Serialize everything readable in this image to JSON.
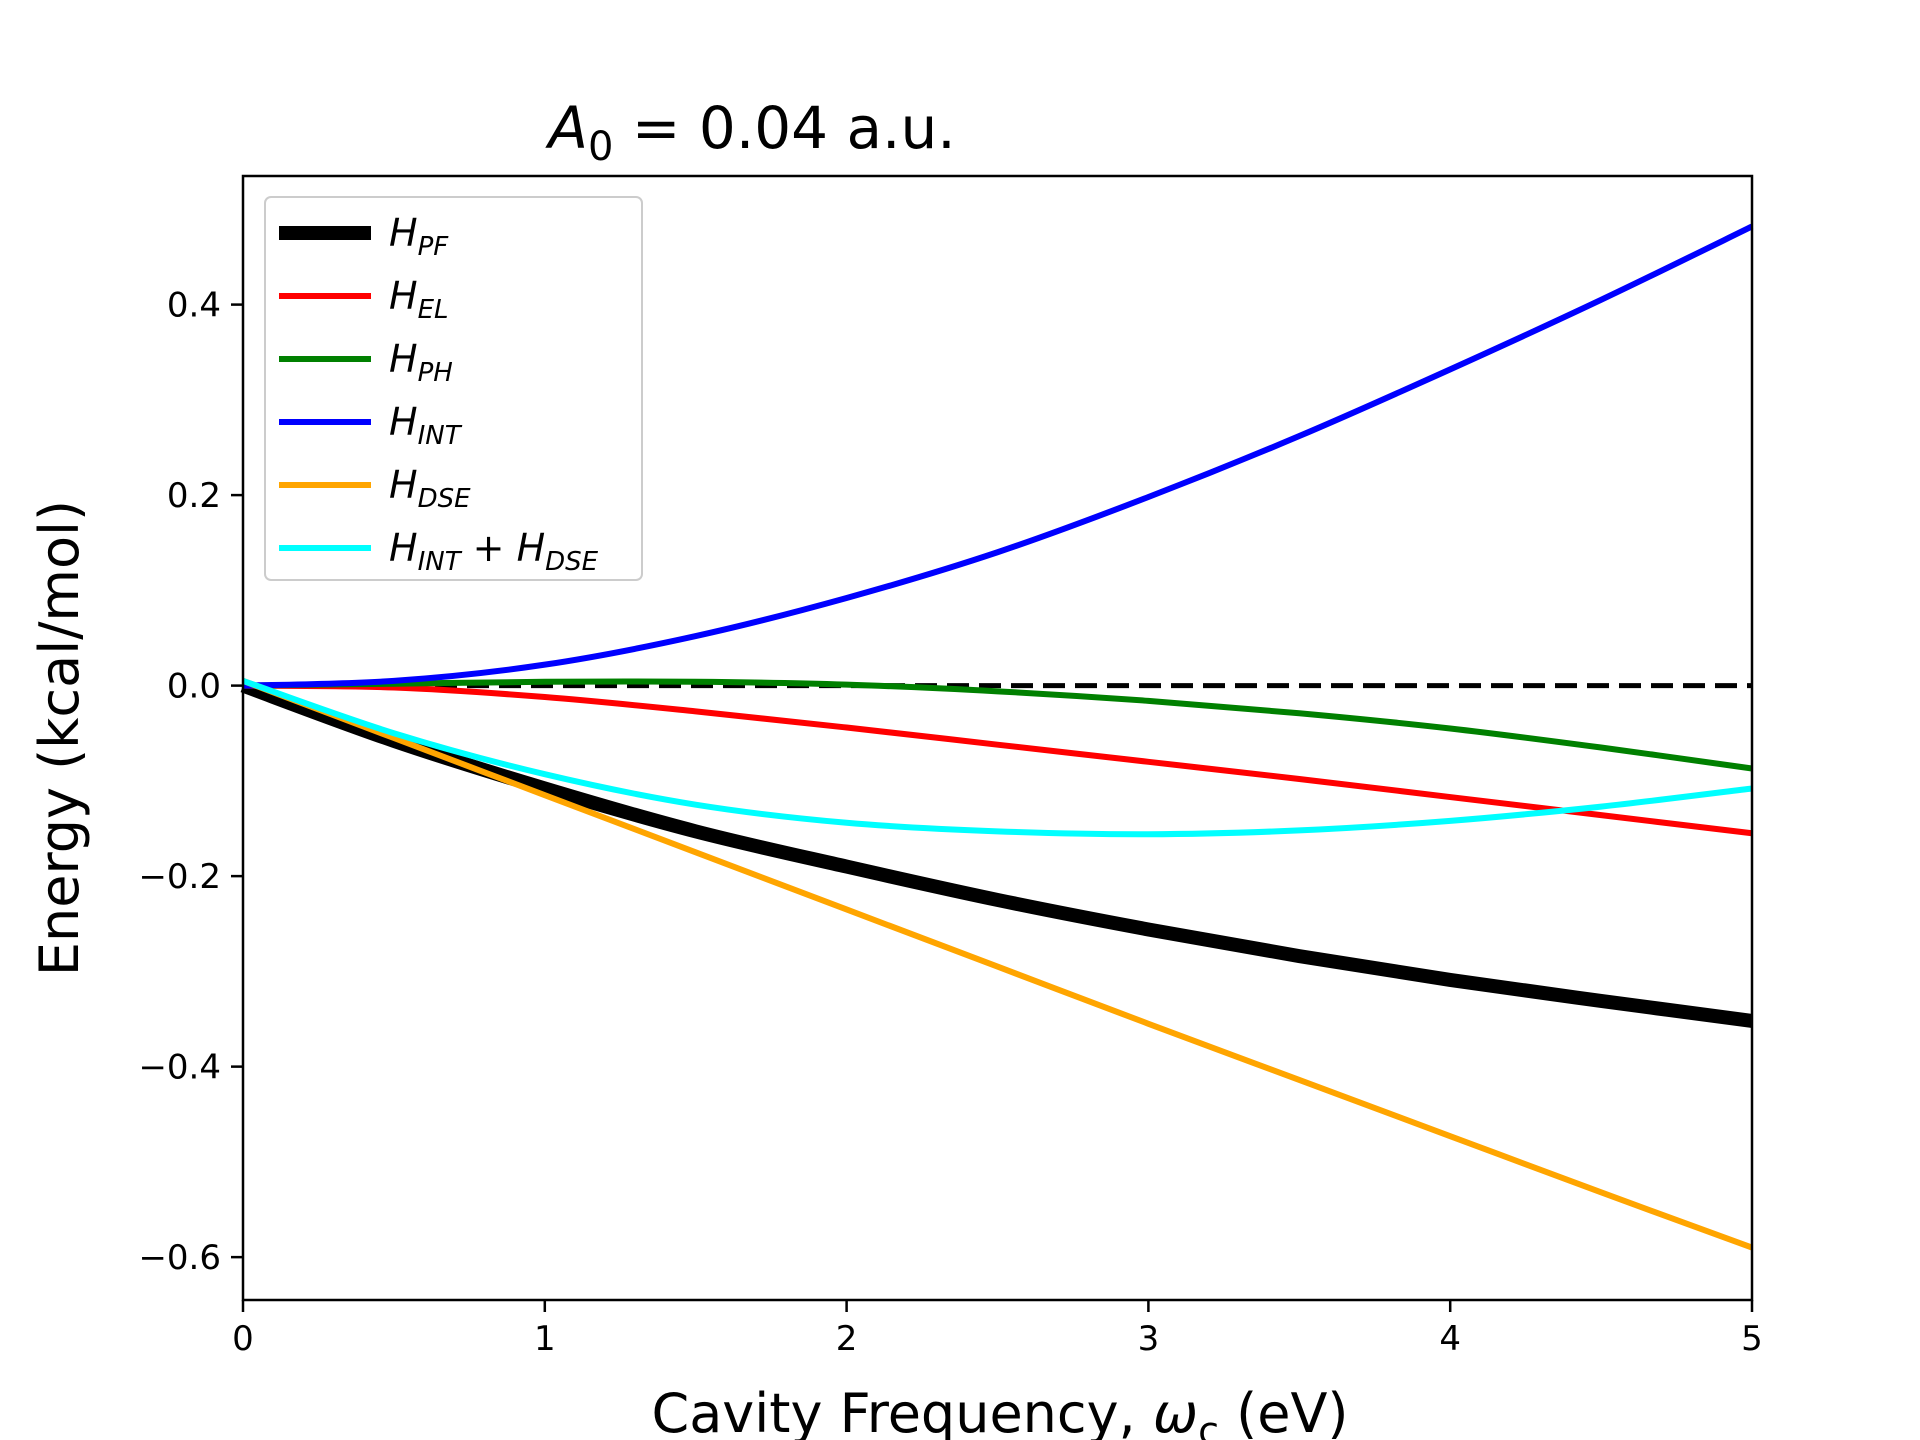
{
  "chart_data": {
    "type": "line",
    "title": {
      "main": "A",
      "sub": "0",
      "rest": " = 0.04 a.u."
    },
    "xlabel": {
      "main": "Cavity Frequency, ",
      "omega": "ω",
      "sub": "c",
      "rest": " (eV)"
    },
    "ylabel": "Energy (kcal/mol)",
    "xlim": [
      0,
      5
    ],
    "ylim": [
      -0.645,
      0.535
    ],
    "xticks": [
      0,
      1,
      2,
      3,
      4,
      5
    ],
    "xtick_labels": [
      "0",
      "1",
      "2",
      "3",
      "4",
      "5"
    ],
    "yticks": [
      0.4,
      0.2,
      0.0,
      -0.2,
      -0.4,
      -0.6
    ],
    "ytick_labels": [
      "0.4",
      "0.2",
      "0.0",
      "−0.2",
      "−0.4",
      "−0.6"
    ],
    "grid": false,
    "legend_position": "top-left",
    "reference_line": {
      "y": 0,
      "style": "dashed",
      "color": "#000000"
    },
    "series": [
      {
        "name": "H",
        "sub": "PF",
        "color": "#000000",
        "width": 14,
        "x": [
          0,
          0.5,
          1,
          1.5,
          2,
          2.5,
          3,
          3.5,
          4,
          4.5,
          5
        ],
        "y": [
          0.0,
          -0.058,
          -0.108,
          -0.153,
          -0.19,
          -0.225,
          -0.256,
          -0.284,
          -0.309,
          -0.331,
          -0.352
        ]
      },
      {
        "name": "H",
        "sub": "EL",
        "color": "#ff0000",
        "width": 6,
        "x": [
          0,
          0.5,
          1,
          1.5,
          2,
          2.5,
          3,
          3.5,
          4,
          4.5,
          5
        ],
        "y": [
          0.0,
          -0.002,
          -0.012,
          -0.027,
          -0.044,
          -0.062,
          -0.08,
          -0.098,
          -0.117,
          -0.136,
          -0.155
        ]
      },
      {
        "name": "H",
        "sub": "PH",
        "color": "#008000",
        "width": 6,
        "x": [
          0,
          0.5,
          1,
          1.5,
          2,
          2.5,
          3,
          3.5,
          4,
          4.5,
          5
        ],
        "y": [
          0.0,
          0.002,
          0.004,
          0.004,
          0.001,
          -0.006,
          -0.016,
          -0.029,
          -0.045,
          -0.065,
          -0.087
        ]
      },
      {
        "name": "H",
        "sub": "INT",
        "color": "#0000ff",
        "width": 6,
        "x": [
          0,
          0.5,
          1,
          1.5,
          2,
          2.5,
          3,
          3.5,
          4,
          4.5,
          5
        ],
        "y": [
          0.0,
          0.005,
          0.022,
          0.052,
          0.092,
          0.14,
          0.198,
          0.262,
          0.332,
          0.405,
          0.482
        ]
      },
      {
        "name": "H",
        "sub": "DSE",
        "color": "#ffa500",
        "width": 6,
        "x": [
          0,
          0.5,
          1,
          1.5,
          2,
          2.5,
          3,
          3.5,
          4,
          4.5,
          5
        ],
        "y": [
          0.005,
          -0.055,
          -0.115,
          -0.175,
          -0.235,
          -0.295,
          -0.355,
          -0.414,
          -0.473,
          -0.532,
          -0.59
        ]
      },
      {
        "name": "H",
        "sub": "INT",
        "mid": " + H",
        "sub2": "DSE",
        "color": "#00ffff",
        "width": 6,
        "x": [
          0,
          0.5,
          1,
          1.5,
          2,
          2.5,
          3,
          3.5,
          4,
          4.5,
          5
        ],
        "y": [
          0.005,
          -0.05,
          -0.093,
          -0.125,
          -0.144,
          -0.153,
          -0.156,
          -0.152,
          -0.142,
          -0.127,
          -0.108
        ]
      }
    ]
  }
}
